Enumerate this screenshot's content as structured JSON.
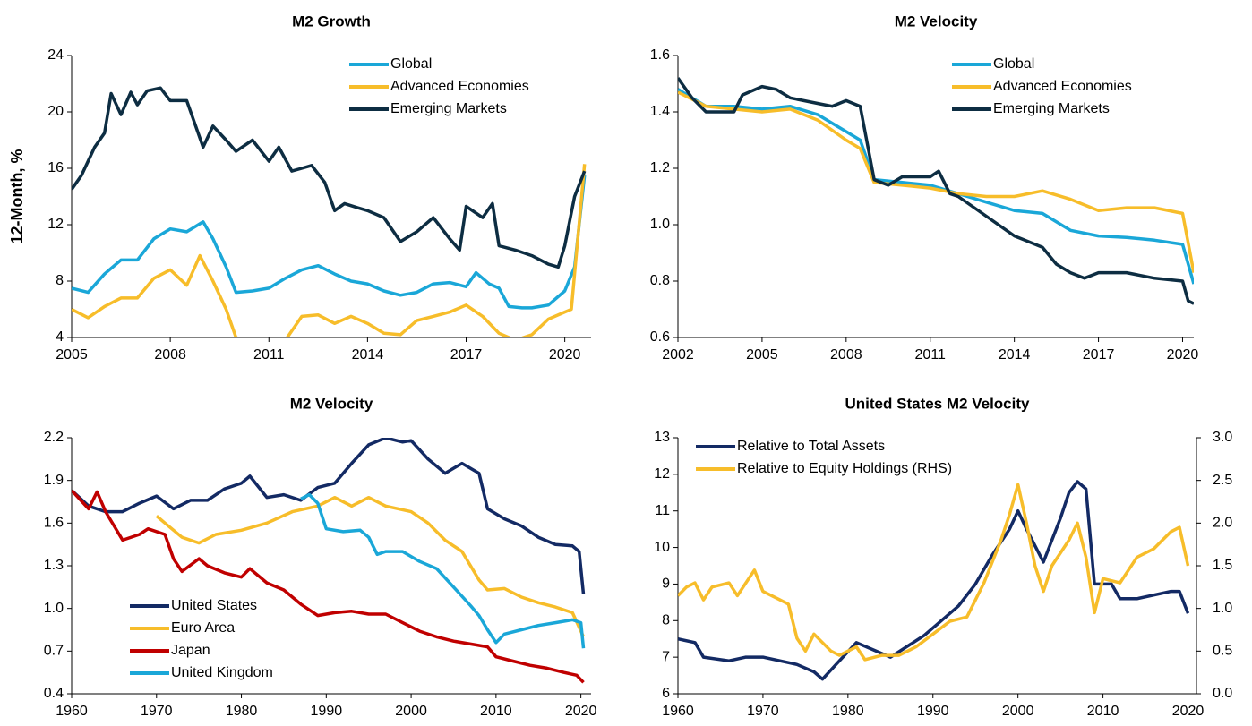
{
  "chart_data": [
    {
      "type": "line",
      "title": "M2 Growth",
      "ylabel": "12-Month, %",
      "xlim": [
        2005,
        2020.8
      ],
      "xticks": [
        2005,
        2008,
        2011,
        2014,
        2017,
        2020
      ],
      "ylim": [
        4,
        24
      ],
      "yticks": [
        4,
        8,
        12,
        16,
        20,
        24
      ],
      "legend": "upper right",
      "series": [
        {
          "name": "Global",
          "color": "#1aa7d8",
          "x": [
            2005,
            2005.5,
            2006,
            2006.5,
            2007,
            2007.5,
            2008,
            2008.5,
            2009,
            2009.3,
            2009.7,
            2010,
            2010.5,
            2011,
            2011.5,
            2012,
            2012.5,
            2013,
            2013.5,
            2014,
            2014.5,
            2015,
            2015.5,
            2016,
            2016.5,
            2017,
            2017.3,
            2017.7,
            2018,
            2018.3,
            2018.7,
            2019,
            2019.5,
            2020,
            2020.3,
            2020.6
          ],
          "values": [
            7.5,
            7.2,
            8.5,
            9.5,
            9.5,
            11,
            11.7,
            11.5,
            12.2,
            11,
            9,
            7.2,
            7.3,
            7.5,
            8.2,
            8.8,
            9.1,
            8.5,
            8,
            7.8,
            7.3,
            7,
            7.2,
            7.8,
            7.9,
            7.6,
            8.6,
            7.8,
            7.5,
            6.2,
            6.1,
            6.1,
            6.3,
            7.3,
            9,
            15.5
          ]
        },
        {
          "name": "Advanced Economies",
          "color": "#f7bd2a",
          "x": [
            2005,
            2005.5,
            2006,
            2006.5,
            2007,
            2007.5,
            2008,
            2008.5,
            2008.9,
            2009.3,
            2009.7,
            2010,
            2010.5,
            2011,
            2011.5,
            2012,
            2012.5,
            2013,
            2013.5,
            2014,
            2014.5,
            2015,
            2015.5,
            2016,
            2016.5,
            2017,
            2017.5,
            2018,
            2018.5,
            2019,
            2019.5,
            2020,
            2020.2,
            2020.6
          ],
          "values": [
            6,
            5.4,
            6.2,
            6.8,
            6.8,
            8.2,
            8.8,
            7.7,
            9.8,
            8,
            6,
            4,
            3.5,
            3.8,
            3.8,
            5.5,
            5.6,
            5,
            5.5,
            5,
            4.3,
            4.2,
            5.2,
            5.5,
            5.8,
            6.3,
            5.5,
            4.3,
            3.8,
            4.2,
            5.3,
            5.8,
            6,
            16.3
          ]
        },
        {
          "name": "Emerging Markets",
          "color": "#0d2d42",
          "x": [
            2005,
            2005.3,
            2005.7,
            2006,
            2006.2,
            2006.5,
            2006.8,
            2007,
            2007.3,
            2007.7,
            2008,
            2008.5,
            2009,
            2009.3,
            2009.7,
            2010,
            2010.5,
            2011,
            2011.3,
            2011.7,
            2012,
            2012.3,
            2012.7,
            2013,
            2013.3,
            2013.7,
            2014,
            2014.5,
            2015,
            2015.5,
            2016,
            2016.5,
            2016.8,
            2017,
            2017.5,
            2017.8,
            2018,
            2018.5,
            2019,
            2019.5,
            2019.8,
            2020,
            2020.3,
            2020.6
          ],
          "values": [
            14.5,
            15.5,
            17.5,
            18.5,
            21.3,
            19.8,
            21.4,
            20.5,
            21.5,
            21.7,
            20.8,
            20.8,
            17.5,
            19,
            18,
            17.2,
            18,
            16.5,
            17.5,
            15.8,
            16,
            16.2,
            15,
            13,
            13.5,
            13.2,
            13,
            12.5,
            10.8,
            11.5,
            12.5,
            11,
            10.2,
            13.3,
            12.5,
            13.5,
            10.5,
            10.2,
            9.8,
            9.2,
            9,
            10.5,
            14,
            15.8
          ]
        }
      ]
    },
    {
      "type": "line",
      "title": "M2 Velocity",
      "xlim": [
        2002,
        2020.4
      ],
      "xticks": [
        2002,
        2005,
        2008,
        2011,
        2014,
        2017,
        2020
      ],
      "ylim": [
        0.6,
        1.6
      ],
      "yticks": [
        0.6,
        0.8,
        {
          "value": 1,
          "label": "1.0"
        },
        1.2,
        1.4,
        1.6
      ],
      "legend": "upper right",
      "series": [
        {
          "name": "Global",
          "color": "#1aa7d8",
          "x": [
            2002,
            2003,
            2004,
            2005,
            2006,
            2007,
            2008,
            2008.5,
            2009,
            2010,
            2011,
            2012,
            2013,
            2014,
            2015,
            2016,
            2017,
            2018,
            2019,
            2020,
            2020.4
          ],
          "values": [
            1.48,
            1.42,
            1.42,
            1.41,
            1.42,
            1.39,
            1.33,
            1.3,
            1.16,
            1.15,
            1.14,
            1.11,
            1.08,
            1.05,
            1.04,
            0.98,
            0.96,
            0.955,
            0.945,
            0.93,
            0.79
          ]
        },
        {
          "name": "Advanced Economies",
          "color": "#f7bd2a",
          "x": [
            2002,
            2003,
            2004,
            2005,
            2006,
            2007,
            2008,
            2008.5,
            2009,
            2010,
            2011,
            2012,
            2013,
            2014,
            2015,
            2016,
            2017,
            2018,
            2019,
            2020,
            2020.4
          ],
          "values": [
            1.47,
            1.42,
            1.41,
            1.4,
            1.41,
            1.37,
            1.3,
            1.27,
            1.15,
            1.14,
            1.13,
            1.11,
            1.1,
            1.1,
            1.12,
            1.09,
            1.05,
            1.06,
            1.06,
            1.04,
            0.83
          ]
        },
        {
          "name": "Emerging Markets",
          "color": "#0d2d42",
          "x": [
            2002,
            2002.5,
            2003,
            2004,
            2004.3,
            2005,
            2005.5,
            2006,
            2007,
            2007.5,
            2008,
            2008.5,
            2009,
            2009.5,
            2010,
            2011,
            2011.3,
            2011.7,
            2012,
            2013,
            2014,
            2015,
            2015.5,
            2016,
            2016.5,
            2017,
            2018,
            2019,
            2020,
            2020.2,
            2020.4
          ],
          "values": [
            1.52,
            1.45,
            1.4,
            1.4,
            1.46,
            1.49,
            1.48,
            1.45,
            1.43,
            1.42,
            1.44,
            1.42,
            1.16,
            1.14,
            1.17,
            1.17,
            1.19,
            1.11,
            1.1,
            1.03,
            0.96,
            0.92,
            0.86,
            0.83,
            0.81,
            0.83,
            0.83,
            0.81,
            0.8,
            0.73,
            0.72
          ]
        }
      ]
    },
    {
      "type": "line",
      "title": "M2 Velocity",
      "xlim": [
        1960,
        2021.2
      ],
      "xticks": [
        1960,
        1970,
        1980,
        1990,
        2000,
        2010,
        2020
      ],
      "ylim": [
        0.4,
        2.2
      ],
      "yticks": [
        0.4,
        0.7,
        {
          "value": 1,
          "label": "1.0"
        },
        1.3,
        1.6,
        1.9,
        2.2
      ],
      "legend": "lower left",
      "series": [
        {
          "name": "United States",
          "color": "#132a64",
          "x": [
            1960,
            1962,
            1964,
            1966,
            1968,
            1970,
            1972,
            1974,
            1976,
            1978,
            1980,
            1981,
            1983,
            1985,
            1987,
            1989,
            1991,
            1993,
            1995,
            1997,
            1999,
            2000,
            2002,
            2004,
            2006,
            2008,
            2009,
            2011,
            2013,
            2015,
            2017,
            2019,
            2019.8,
            2020.3
          ],
          "values": [
            1.83,
            1.72,
            1.68,
            1.68,
            1.74,
            1.79,
            1.7,
            1.76,
            1.76,
            1.84,
            1.88,
            1.93,
            1.78,
            1.8,
            1.76,
            1.85,
            1.88,
            2.02,
            2.15,
            2.2,
            2.17,
            2.18,
            2.05,
            1.95,
            2.02,
            1.95,
            1.7,
            1.63,
            1.58,
            1.5,
            1.45,
            1.44,
            1.4,
            1.1
          ]
        },
        {
          "name": "Euro Area",
          "color": "#f7bd2a",
          "x": [
            1970,
            1971,
            1973,
            1975,
            1977,
            1980,
            1983,
            1986,
            1989,
            1991,
            1993,
            1995,
            1997,
            2000,
            2002,
            2004,
            2006,
            2008,
            2009,
            2011,
            2013,
            2015,
            2017,
            2019,
            2020.3
          ],
          "values": [
            1.65,
            1.6,
            1.5,
            1.46,
            1.52,
            1.55,
            1.6,
            1.68,
            1.72,
            1.78,
            1.72,
            1.78,
            1.72,
            1.68,
            1.6,
            1.48,
            1.4,
            1.2,
            1.13,
            1.14,
            1.08,
            1.04,
            1.01,
            0.97,
            0.8
          ]
        },
        {
          "name": "Japan",
          "color": "#c00000",
          "x": [
            1960,
            1962,
            1963,
            1964,
            1966,
            1968,
            1969,
            1971,
            1972,
            1973,
            1975,
            1976,
            1978,
            1980,
            1981,
            1983,
            1985,
            1987,
            1989,
            1991,
            1993,
            1995,
            1997,
            1999,
            2001,
            2003,
            2005,
            2007,
            2009,
            2010,
            2012,
            2014,
            2016,
            2018,
            2019.5,
            2020.3
          ],
          "values": [
            1.83,
            1.7,
            1.82,
            1.68,
            1.48,
            1.52,
            1.56,
            1.52,
            1.35,
            1.26,
            1.35,
            1.3,
            1.25,
            1.22,
            1.28,
            1.18,
            1.13,
            1.03,
            0.95,
            0.97,
            0.98,
            0.96,
            0.96,
            0.9,
            0.84,
            0.8,
            0.77,
            0.75,
            0.73,
            0.66,
            0.63,
            0.6,
            0.58,
            0.55,
            0.53,
            0.48
          ]
        },
        {
          "name": "United Kingdom",
          "color": "#1aa7d8",
          "x": [
            1987,
            1988,
            1989,
            1990,
            1992,
            1994,
            1995,
            1996,
            1997,
            1999,
            2001,
            2003,
            2005,
            2007,
            2008,
            2009,
            2010,
            2011,
            2013,
            2015,
            2017,
            2019,
            2020,
            2020.3
          ],
          "values": [
            1.77,
            1.8,
            1.74,
            1.56,
            1.54,
            1.55,
            1.5,
            1.38,
            1.4,
            1.4,
            1.33,
            1.28,
            1.15,
            1.02,
            0.95,
            0.85,
            0.76,
            0.82,
            0.85,
            0.88,
            0.9,
            0.92,
            0.9,
            0.72
          ]
        }
      ]
    },
    {
      "type": "line",
      "title": "United States M2 Velocity",
      "xlim": [
        1960,
        2021
      ],
      "xticks": [
        1960,
        1970,
        1980,
        1990,
        2000,
        2010,
        2020
      ],
      "ylim": [
        6,
        13
      ],
      "yticks": [
        6,
        7,
        8,
        9,
        10,
        11,
        12,
        13
      ],
      "y2lim": [
        0,
        3
      ],
      "y2ticks": [
        {
          "value": 0,
          "label": "0.0"
        },
        0.5,
        {
          "value": 1,
          "label": "1.0"
        },
        1.5,
        {
          "value": 2,
          "label": "2.0"
        },
        2.5,
        {
          "value": 3,
          "label": "3.0"
        }
      ],
      "legend": "upper left",
      "series": [
        {
          "name": "Relative to Total Assets",
          "color": "#132a64",
          "x": [
            1960,
            1962,
            1963,
            1966,
            1968,
            1970,
            1972,
            1974,
            1976,
            1977,
            1979,
            1981,
            1983,
            1985,
            1987,
            1989,
            1991,
            1993,
            1995,
            1997,
            1999,
            2000,
            2001,
            2003,
            2005,
            2006,
            2007,
            2008,
            2009,
            2011,
            2012,
            2014,
            2016,
            2018,
            2019,
            2020
          ],
          "values": [
            7.5,
            7.4,
            7,
            6.9,
            7,
            7,
            6.9,
            6.8,
            6.6,
            6.4,
            6.9,
            7.4,
            7.2,
            7,
            7.3,
            7.6,
            8,
            8.4,
            9,
            9.8,
            10.5,
            11,
            10.5,
            9.6,
            10.8,
            11.5,
            11.8,
            11.6,
            9,
            9,
            8.6,
            8.6,
            8.7,
            8.8,
            8.8,
            8.2
          ]
        },
        {
          "name": "Relative to Equity Holdings (RHS)",
          "color": "#f7bd2a",
          "axis": "y2",
          "x": [
            1960,
            1961,
            1962,
            1963,
            1964,
            1966,
            1967,
            1969,
            1970,
            1972,
            1973,
            1974,
            1975,
            1976,
            1978,
            1979,
            1981,
            1982,
            1984,
            1986,
            1988,
            1990,
            1992,
            1994,
            1996,
            1998,
            1999,
            2000,
            2001,
            2002,
            2003,
            2004,
            2006,
            2007,
            2008,
            2009,
            2010,
            2012,
            2014,
            2016,
            2018,
            2019,
            2020
          ],
          "values": [
            1.15,
            1.25,
            1.3,
            1.1,
            1.25,
            1.3,
            1.15,
            1.45,
            1.2,
            1.1,
            1.05,
            0.65,
            0.5,
            0.7,
            0.5,
            0.45,
            0.55,
            0.4,
            0.45,
            0.45,
            0.55,
            0.7,
            0.85,
            0.9,
            1.3,
            1.8,
            2.1,
            2.45,
            2,
            1.5,
            1.2,
            1.5,
            1.8,
            2,
            1.6,
            0.95,
            1.35,
            1.3,
            1.6,
            1.7,
            1.9,
            1.95,
            1.5
          ]
        }
      ]
    }
  ]
}
